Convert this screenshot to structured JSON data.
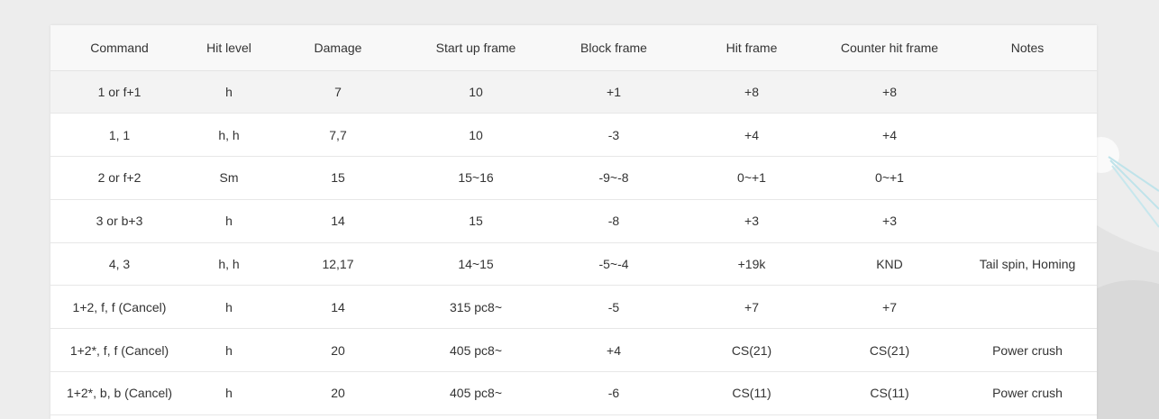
{
  "table": {
    "columns": [
      "Command",
      "Hit level",
      "Damage",
      "Start up frame",
      "Block frame",
      "Hit frame",
      "Counter hit frame",
      "Notes"
    ],
    "rows": [
      {
        "command": "1 or f+1",
        "hit_level": "h",
        "damage": "7",
        "startup": "10",
        "block": "+1",
        "hit": "+8",
        "counter": "+8",
        "notes": ""
      },
      {
        "command": "1, 1",
        "hit_level": "h, h",
        "damage": "7,7",
        "startup": "10",
        "block": "-3",
        "hit": "+4",
        "counter": "+4",
        "notes": ""
      },
      {
        "command": "2 or f+2",
        "hit_level": "Sm",
        "damage": "15",
        "startup": "15~16",
        "block": "-9~-8",
        "hit": "0~+1",
        "counter": "0~+1",
        "notes": ""
      },
      {
        "command": "3 or b+3",
        "hit_level": "h",
        "damage": "14",
        "startup": "15",
        "block": "-8",
        "hit": "+3",
        "counter": "+3",
        "notes": ""
      },
      {
        "command": "4, 3",
        "hit_level": "h, h",
        "damage": "12,17",
        "startup": "14~15",
        "block": "-5~-4",
        "hit": "+19k",
        "counter": "KND",
        "notes": "Tail spin, Homing"
      },
      {
        "command": "1+2, f, f (Cancel)",
        "hit_level": "h",
        "damage": "14",
        "startup": "315 pc8~",
        "block": "-5",
        "hit": "+7",
        "counter": "+7",
        "notes": ""
      },
      {
        "command": "1+2*, f, f (Cancel)",
        "hit_level": "h",
        "damage": "20",
        "startup": "405 pc8~",
        "block": "+4",
        "hit": "CS(21)",
        "counter": "CS(21)",
        "notes": "Power crush"
      },
      {
        "command": "1+2*, b, b (Cancel)",
        "hit_level": "h",
        "damage": "20",
        "startup": "405 pc8~",
        "block": "-6",
        "hit": "CS(11)",
        "counter": "CS(11)",
        "notes": "Power crush"
      }
    ]
  }
}
